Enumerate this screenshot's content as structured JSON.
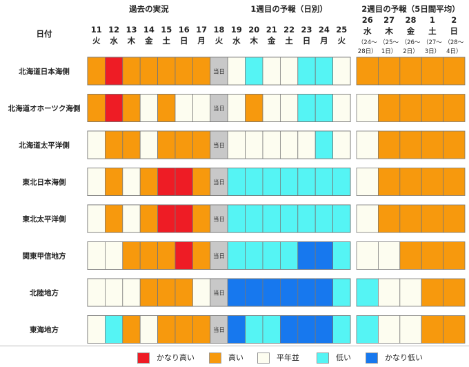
{
  "chart_data": {
    "type": "heatmap",
    "corner_label": "日付",
    "group_headers": [
      "過去の実況",
      "1週目の予報（日別）",
      "2週目の予報（5日間平均）"
    ],
    "week1_days": [
      {
        "date": "11",
        "dow": "火"
      },
      {
        "date": "12",
        "dow": "水"
      },
      {
        "date": "13",
        "dow": "木"
      },
      {
        "date": "14",
        "dow": "金"
      },
      {
        "date": "15",
        "dow": "土"
      },
      {
        "date": "16",
        "dow": "日"
      },
      {
        "date": "17",
        "dow": "月"
      },
      {
        "date": "18",
        "dow": "火"
      },
      {
        "date": "19",
        "dow": "水"
      },
      {
        "date": "20",
        "dow": "木"
      },
      {
        "date": "21",
        "dow": "金"
      },
      {
        "date": "22",
        "dow": "土"
      },
      {
        "date": "23",
        "dow": "日"
      },
      {
        "date": "24",
        "dow": "月"
      },
      {
        "date": "25",
        "dow": "火"
      }
    ],
    "week2_periods": [
      {
        "date": "26",
        "dow": "水",
        "range": "（24～28日）"
      },
      {
        "date": "27",
        "dow": "木",
        "range": "（25～1日）"
      },
      {
        "date": "28",
        "dow": "金",
        "range": "（26～2日）"
      },
      {
        "date": "1",
        "dow": "土",
        "range": "（27～3日）"
      },
      {
        "date": "2",
        "dow": "日",
        "range": "（28～4日）"
      }
    ],
    "today_label": "当日",
    "today_index": 7,
    "levels": {
      "VH": {
        "label": "かなり高い",
        "color": "#ee1c25"
      },
      "H": {
        "label": "高い",
        "color": "#f7990d"
      },
      "N": {
        "label": "平年並",
        "color": "#fdfdf0"
      },
      "L": {
        "label": "低い",
        "color": "#55f4f4"
      },
      "VL": {
        "label": "かなり低い",
        "color": "#1778ee"
      },
      "T": {
        "label": "",
        "color": "#c8c8c8"
      }
    },
    "legend_order": [
      "VH",
      "H",
      "N",
      "L",
      "VL"
    ],
    "regions": [
      {
        "name": "北海道日本海側",
        "daily": [
          "H",
          "VH",
          "H",
          "H",
          "H",
          "H",
          "H",
          "T",
          "N",
          "L",
          "N",
          "N",
          "L",
          "L",
          "N"
        ],
        "week2": [
          "H",
          "H",
          "H",
          "H",
          "H"
        ]
      },
      {
        "name": "北海道オホーツク海側",
        "daily": [
          "H",
          "VH",
          "H",
          "N",
          "H",
          "N",
          "N",
          "T",
          "N",
          "H",
          "N",
          "N",
          "L",
          "L",
          "N"
        ],
        "week2": [
          "N",
          "H",
          "H",
          "H",
          "H"
        ]
      },
      {
        "name": "北海道太平洋側",
        "daily": [
          "N",
          "H",
          "H",
          "N",
          "H",
          "H",
          "H",
          "T",
          "N",
          "N",
          "N",
          "N",
          "N",
          "L",
          "N"
        ],
        "week2": [
          "N",
          "H",
          "H",
          "H",
          "H"
        ]
      },
      {
        "name": "東北日本海側",
        "daily": [
          "N",
          "H",
          "N",
          "H",
          "VH",
          "VH",
          "H",
          "T",
          "L",
          "L",
          "L",
          "L",
          "L",
          "L",
          "L"
        ],
        "week2": [
          "N",
          "H",
          "H",
          "H",
          "H"
        ]
      },
      {
        "name": "東北太平洋側",
        "daily": [
          "N",
          "H",
          "N",
          "H",
          "VH",
          "VH",
          "H",
          "T",
          "L",
          "L",
          "L",
          "L",
          "L",
          "L",
          "L"
        ],
        "week2": [
          "N",
          "H",
          "H",
          "H",
          "H"
        ]
      },
      {
        "name": "関東甲信地方",
        "daily": [
          "N",
          "N",
          "H",
          "H",
          "H",
          "VH",
          "H",
          "T",
          "L",
          "L",
          "L",
          "L",
          "VL",
          "VL",
          "L"
        ],
        "week2": [
          "N",
          "N",
          "H",
          "H",
          "H"
        ]
      },
      {
        "name": "北陸地方",
        "daily": [
          "N",
          "N",
          "N",
          "H",
          "H",
          "H",
          "N",
          "T",
          "VL",
          "VL",
          "VL",
          "VL",
          "VL",
          "VL",
          "L"
        ],
        "week2": [
          "L",
          "N",
          "N",
          "H",
          "H"
        ]
      },
      {
        "name": "東海地方",
        "daily": [
          "N",
          "L",
          "H",
          "N",
          "H",
          "H",
          "H",
          "T",
          "VL",
          "L",
          "L",
          "VL",
          "VL",
          "VL",
          "L"
        ],
        "week2": [
          "L",
          "N",
          "N",
          "H",
          "H"
        ]
      }
    ]
  }
}
